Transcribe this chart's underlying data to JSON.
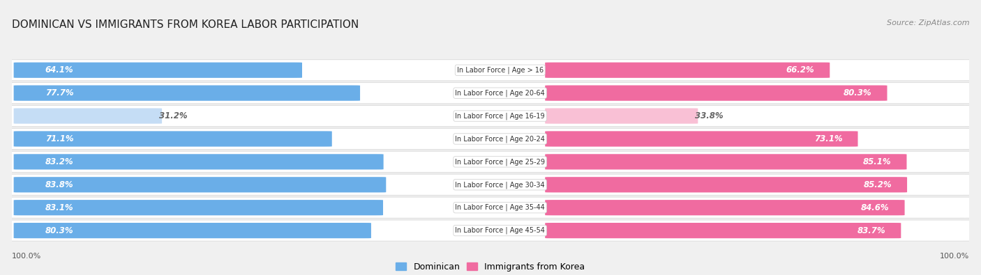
{
  "title": "DOMINICAN VS IMMIGRANTS FROM KOREA LABOR PARTICIPATION",
  "source": "Source: ZipAtlas.com",
  "categories": [
    "In Labor Force | Age > 16",
    "In Labor Force | Age 20-64",
    "In Labor Force | Age 16-19",
    "In Labor Force | Age 20-24",
    "In Labor Force | Age 25-29",
    "In Labor Force | Age 30-34",
    "In Labor Force | Age 35-44",
    "In Labor Force | Age 45-54"
  ],
  "dominican": [
    64.1,
    77.7,
    31.2,
    71.1,
    83.2,
    83.8,
    83.1,
    80.3
  ],
  "korea": [
    66.2,
    80.3,
    33.8,
    73.1,
    85.1,
    85.2,
    84.6,
    83.7
  ],
  "dominican_color": "#6aaee8",
  "korea_color": "#f06ba0",
  "dominican_light_color": "#c5ddf5",
  "korea_light_color": "#f9c0d5",
  "background_color": "#f0f0f0",
  "row_bg_color": "#ffffff",
  "row_border_color": "#e0e0e0",
  "label_color": "#ffffff",
  "dark_label_color": "#666666",
  "max_value": 100.0,
  "legend_dominican": "Dominican",
  "legend_korea": "Immigrants from Korea",
  "label_box_color": "#ffffff",
  "label_box_border": "#cccccc"
}
